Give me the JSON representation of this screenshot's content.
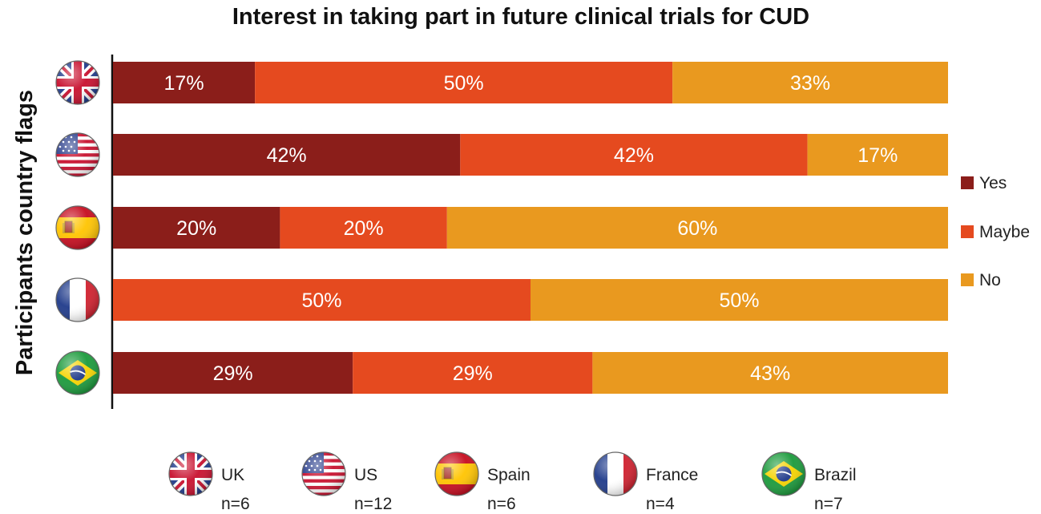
{
  "chart_data": {
    "type": "bar",
    "orientation": "horizontal",
    "stacked": true,
    "title": "Interest in taking part in future clinical trials for CUD",
    "ylabel": "Participants country flags",
    "xlim": [
      0,
      100
    ],
    "categories": [
      "UK",
      "US",
      "Spain",
      "France",
      "Brazil"
    ],
    "series": [
      {
        "name": "Yes",
        "color": "#8b1e1a",
        "values": [
          17,
          42,
          20,
          0,
          29
        ]
      },
      {
        "name": "Maybe",
        "color": "#e54a1f",
        "values": [
          50,
          42,
          20,
          50,
          29
        ]
      },
      {
        "name": "No",
        "color": "#e9991f",
        "values": [
          33,
          17,
          60,
          50,
          43
        ]
      }
    ],
    "data_labels": [
      [
        "17%",
        "50%",
        "33%"
      ],
      [
        "42%",
        "42%",
        "17%"
      ],
      [
        "20%",
        "20%",
        "60%"
      ],
      [
        "",
        "50%",
        "50%"
      ],
      [
        "29%",
        "29%",
        "43%"
      ]
    ],
    "legend_position": "right",
    "flag_legend": [
      {
        "country": "UK",
        "n": "n=6",
        "flag": "uk-flag-icon"
      },
      {
        "country": "US",
        "n": "n=12",
        "flag": "us-flag-icon"
      },
      {
        "country": "Spain",
        "n": "n=6",
        "flag": "spain-flag-icon"
      },
      {
        "country": "France",
        "n": "n=4",
        "flag": "france-flag-icon"
      },
      {
        "country": "Brazil",
        "n": "n=7",
        "flag": "brazil-flag-icon"
      }
    ]
  }
}
